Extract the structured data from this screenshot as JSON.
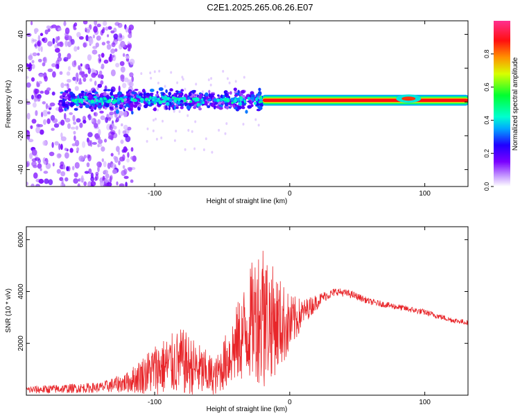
{
  "title": "C2E1.2025.265.06.26.E07",
  "chart_data": [
    {
      "type": "heatmap",
      "xlabel": "Height of straight line (km)",
      "ylabel": "Frequency (Hz)",
      "xlim": [
        -195,
        132
      ],
      "ylim": [
        -50,
        48
      ],
      "xticks": [
        -100,
        0,
        100
      ],
      "yticks": [
        -40,
        -20,
        0,
        20,
        40
      ],
      "colorbar": {
        "label": "Normalized spectral amplitude",
        "range": [
          0.0,
          1.0
        ],
        "ticks": [
          0.0,
          0.2,
          0.4,
          0.6,
          0.8
        ],
        "tick_labels": [
          "0.0",
          "0.2",
          "0.4",
          "0.6",
          "0.8"
        ],
        "colormap": "rainbow (white-violet-blue-cyan-green-yellow-orange-red-magenta)"
      },
      "description_of_content": "Scattered weak violet power from -195 to -115 km across all frequencies; narrow band near 0 to +5 Hz from -170 to -20 km with blue/cyan patches; strong red narrow band at ~+1 Hz from -20 km to 132 km, broader near 85-95 km",
      "band": {
        "center_hz": 1,
        "segments": [
          {
            "x_start": -170,
            "x_end": -20,
            "amplitude": 0.3,
            "width_hz": 8
          },
          {
            "x_start": -20,
            "x_end": 132,
            "amplitude": 0.95,
            "width_hz": 2
          }
        ]
      }
    },
    {
      "type": "line",
      "xlabel": "Height of straight line (km)",
      "ylabel": "SNR (10 * v/v)",
      "xlim": [
        -195,
        132
      ],
      "ylim": [
        0,
        6500
      ],
      "xticks": [
        -100,
        0,
        100
      ],
      "yticks": [
        2000,
        4000,
        6000
      ],
      "series": [
        {
          "color": "#e8262a",
          "envelope": {
            "x": [
              -195,
              -140,
              -120,
              -100,
              -80,
              -65,
              -55,
              -45,
              -35,
              -25,
              -20,
              -15,
              -10,
              0,
              10,
              25,
              35,
              45,
              60,
              80,
              100,
              120,
              132
            ],
            "y_center": [
              200,
              300,
              500,
              1000,
              1300,
              900,
              700,
              1500,
              2300,
              3100,
              3200,
              2900,
              2800,
              2700,
              3200,
              3800,
              4000,
              3900,
              3600,
              3400,
              3200,
              2900,
              2800
            ],
            "y_spread": [
              150,
              200,
              400,
              1000,
              1300,
              1000,
              700,
              1200,
              1800,
              2500,
              3000,
              2300,
              2000,
              1200,
              500,
              200,
              150,
              150,
              120,
              120,
              120,
              100,
              100
            ]
          }
        }
      ]
    }
  ]
}
